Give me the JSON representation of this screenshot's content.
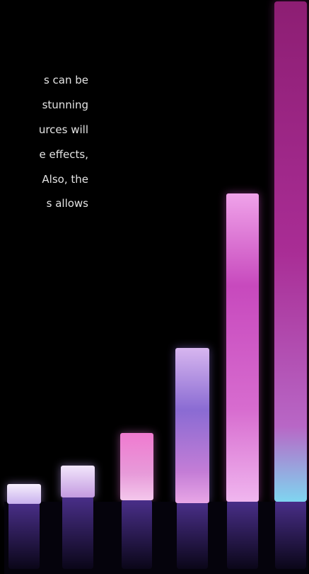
{
  "text_lines": [
    "s can be",
    "stunning",
    "urces will",
    "e effects,",
    "Also, the",
    "s allows"
  ]
}
